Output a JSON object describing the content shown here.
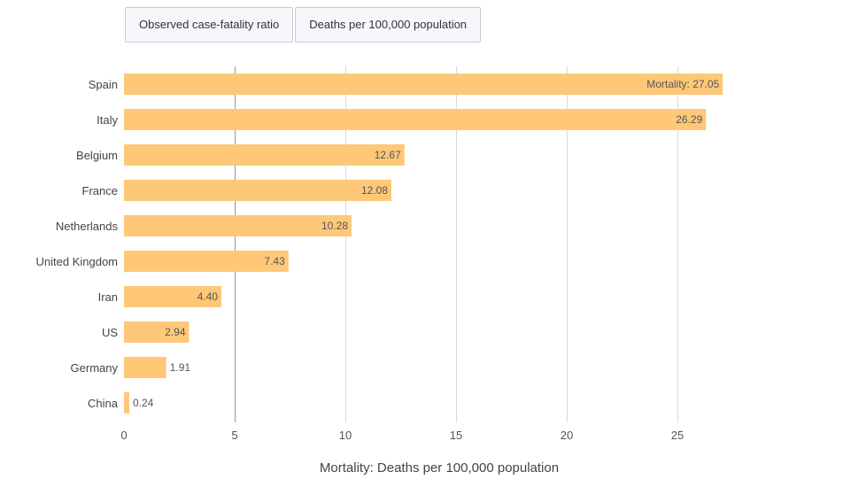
{
  "tabs": [
    {
      "label": "Observed case-fatality ratio"
    },
    {
      "label": "Deaths per 100,000 population"
    }
  ],
  "chart_data": {
    "type": "bar",
    "orientation": "horizontal",
    "categories": [
      "Spain",
      "Italy",
      "Belgium",
      "France",
      "Netherlands",
      "United Kingdom",
      "Iran",
      "US",
      "Germany",
      "China"
    ],
    "values": [
      27.05,
      26.29,
      12.67,
      12.08,
      10.28,
      7.43,
      4.4,
      2.94,
      1.91,
      0.24
    ],
    "value_labels": [
      "Mortality: 27.05",
      "26.29",
      "12.67",
      "12.08",
      "10.28",
      "7.43",
      "4.40",
      "2.94",
      "1.91",
      "0.24"
    ],
    "x_ticks": [
      "0",
      "5",
      "10",
      "15",
      "20",
      "25"
    ],
    "xlim": [
      0,
      30
    ],
    "xlabel": "Mortality: Deaths per 100,000 population",
    "grid": true,
    "bar_color": "#fec878",
    "grid_color": "#d9d9d9",
    "zero_line_color": "#999999"
  }
}
